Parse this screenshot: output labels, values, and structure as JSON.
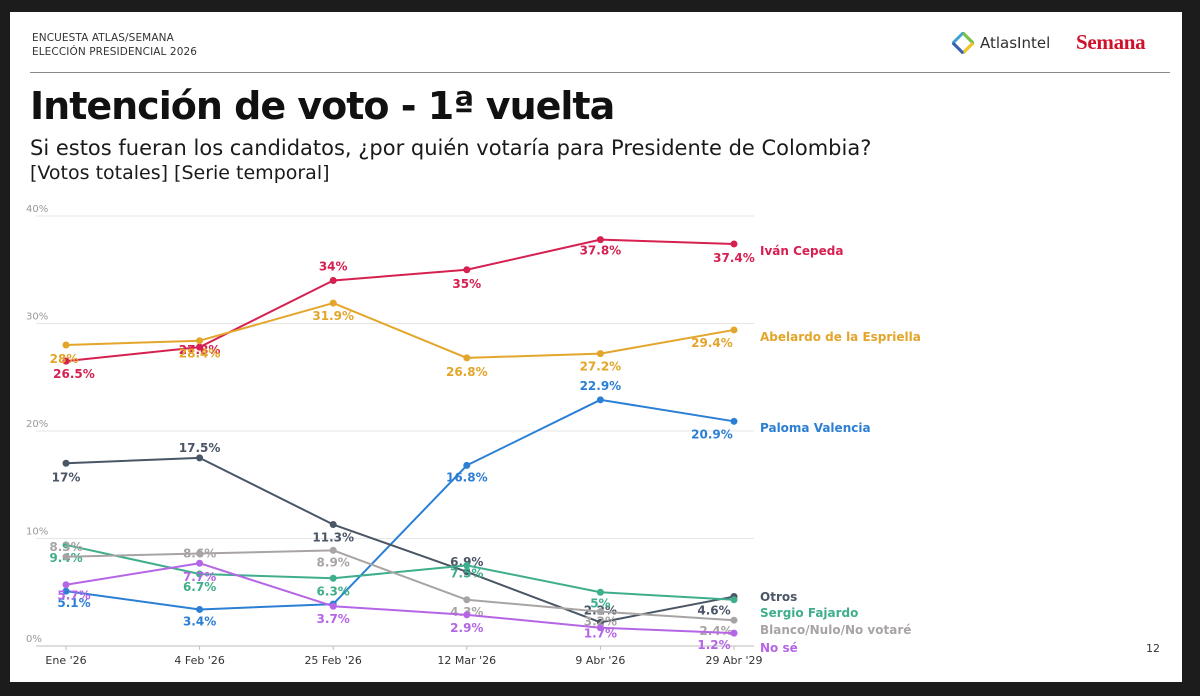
{
  "header": {
    "survey_line1": "ENCUESTA ATLAS/SEMANA",
    "survey_line2": "ELECCIÓN PRESIDENCIAL 2026",
    "brand_atlas": "AtlasIntel",
    "brand_semana": "Semana",
    "page_number": "12"
  },
  "title": "Intención de voto - 1ª vuelta",
  "subtitle": "Si estos fueran los candidatos, ¿por quién votaría para Presidente de Colombia?",
  "subtitle2": "[Votos totales] [Serie temporal]",
  "colors": {
    "cepeda": "#d62050",
    "espriella": "#e3a52a",
    "valencia": "#2b7fd4",
    "otros": "#4a5566",
    "fajardo": "#3fae8c",
    "blanco": "#a9a4a4",
    "nose": "#b566e6",
    "atlas_logo": [
      "#3fa0d8",
      "#7cc242",
      "#f6c519",
      "#3b5fb0"
    ],
    "semana": "#d0112b"
  },
  "chart_data": {
    "type": "line",
    "categories": [
      "Ene '26",
      "4 Feb '26",
      "25 Feb '26",
      "12 Mar '26",
      "9 Abr '26",
      "29 Abr '29"
    ],
    "ylim": [
      0,
      40
    ],
    "yticks": [
      "0%",
      "10%",
      "20%",
      "30%",
      "40%"
    ],
    "ytick_values": [
      0,
      10,
      20,
      30,
      40
    ],
    "grid": true,
    "legend": "right (labels at line ends)",
    "series": [
      {
        "name": "Iván Cepeda",
        "key": "cepeda",
        "values": [
          26.5,
          27.8,
          34,
          35,
          37.8,
          37.4
        ],
        "labels": [
          "26.5%",
          "27.8%",
          "34%",
          "35%",
          "37.8%",
          "37.4%"
        ]
      },
      {
        "name": "Abelardo de la Espriella",
        "key": "espriella",
        "values": [
          28,
          28.4,
          31.9,
          26.8,
          27.2,
          29.4
        ],
        "labels": [
          "28%",
          "28.4%",
          "31.9%",
          "26.8%",
          "27.2%",
          "29.4%"
        ]
      },
      {
        "name": "Paloma Valencia",
        "key": "valencia",
        "values": [
          5.1,
          3.4,
          3.9,
          16.8,
          22.9,
          20.9
        ],
        "labels": [
          "5.1%",
          "3.4%",
          "",
          "16.8%",
          "22.9%",
          "20.9%"
        ]
      },
      {
        "name": "Otros",
        "key": "otros",
        "values": [
          17,
          17.5,
          11.3,
          6.9,
          2.2,
          4.6
        ],
        "labels": [
          "17%",
          "17.5%",
          "11.3%",
          "6.9%",
          "2.2%",
          "4.6%"
        ]
      },
      {
        "name": "Sergio Fajardo",
        "key": "fajardo",
        "values": [
          9.4,
          6.7,
          6.3,
          7.5,
          5,
          4.3
        ],
        "labels": [
          "9.4%",
          "6.7%",
          "6.3%",
          "7.5%",
          "5%",
          ""
        ]
      },
      {
        "name": "Blanco/Nulo/No votaré",
        "key": "blanco",
        "values": [
          8.3,
          8.6,
          8.9,
          4.3,
          3.2,
          2.4
        ],
        "labels": [
          "8.3%",
          "8.6%",
          "8.9%",
          "4.3%",
          "3.2%",
          "2.4%"
        ]
      },
      {
        "name": "No sé",
        "key": "nose",
        "values": [
          5.7,
          7.7,
          3.7,
          2.9,
          1.7,
          1.2
        ],
        "labels": [
          "5.7%",
          "7.7%",
          "3.7%",
          "2.9%",
          "1.7%",
          "1.2%"
        ]
      }
    ]
  }
}
